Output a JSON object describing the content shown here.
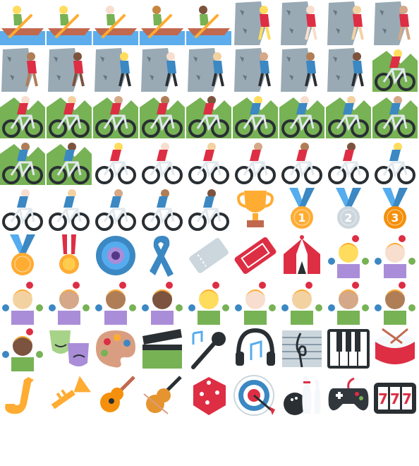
{
  "grid": {
    "columns": 9,
    "icons": [
      "rowing-boat-icon",
      "rowing-boat-icon",
      "rowing-boat-icon",
      "rowing-boat-icon",
      "rowing-boat-icon",
      "woman-climbing-icon",
      "woman-climbing-icon",
      "woman-climbing-icon",
      "woman-climbing-icon",
      "woman-climbing-icon",
      "woman-climbing-icon",
      "man-climbing-icon",
      "man-climbing-icon",
      "man-climbing-icon",
      "man-climbing-icon",
      "man-climbing-icon",
      "man-climbing-icon",
      "woman-mountain-biking-icon",
      "woman-mountain-biking-icon",
      "woman-mountain-biking-icon",
      "woman-mountain-biking-icon",
      "woman-mountain-biking-icon",
      "woman-mountain-biking-icon",
      "man-mountain-biking-icon",
      "man-mountain-biking-icon",
      "man-mountain-biking-icon",
      "man-mountain-biking-icon",
      "man-mountain-biking-icon",
      "man-mountain-biking-icon",
      "woman-biking-icon",
      "woman-biking-icon",
      "woman-biking-icon",
      "woman-biking-icon",
      "woman-biking-icon",
      "woman-biking-icon",
      "man-biking-icon",
      "man-biking-icon",
      "man-biking-icon",
      "man-biking-icon",
      "man-biking-icon",
      "man-biking-icon",
      "trophy-icon",
      "gold-medal-icon",
      "silver-medal-icon",
      "bronze-medal-icon",
      "sports-medal-icon",
      "military-medal-icon",
      "rosette-icon",
      "reminder-ribbon-icon",
      "ticket-icon",
      "admission-ticket-icon",
      "circus-tent-icon",
      "woman-juggling-icon",
      "woman-juggling-icon",
      "woman-juggling-icon",
      "woman-juggling-icon",
      "woman-juggling-icon",
      "woman-juggling-icon",
      "man-juggling-icon",
      "man-juggling-icon",
      "man-juggling-icon",
      "man-juggling-icon",
      "man-juggling-icon",
      "man-juggling-icon",
      "performing-arts-icon",
      "artist-palette-icon",
      "clapper-board-icon",
      "microphone-icon",
      "headphones-icon",
      "musical-score-icon",
      "musical-keyboard-icon",
      "drum-icon",
      "saxophone-icon",
      "trumpet-icon",
      "guitar-icon",
      "violin-icon",
      "game-die-icon",
      "direct-hit-icon",
      "bowling-icon",
      "video-game-icon",
      "slot-machine-icon"
    ],
    "skin_tones": [
      "#FFDC5D",
      "#FFDC5D",
      "#F7DECE",
      "#C68642",
      "#7C533E",
      "#FFDC5D",
      "#F7DECE",
      "#F3D2A2",
      "#D4A888",
      "#AF7E57",
      "#7C533E",
      "#FFDC5D",
      "#F7DECE",
      "#F3D2A2",
      "#D4A888",
      "#AF7E57",
      "#7C533E",
      "#FFDC5D",
      "#F7DECE",
      "#F3D2A2",
      "#D4A888",
      "#AF7E57",
      "#7C533E",
      "#FFDC5D",
      "#F7DECE",
      "#F3D2A2",
      "#D4A888",
      "#AF7E57",
      "#7C533E",
      "#FFDC5D",
      "#F7DECE",
      "#F3D2A2",
      "#D4A888",
      "#AF7E57",
      "#7C533E",
      "#FFDC5D",
      "#F7DECE",
      "#F3D2A2",
      "#D4A888",
      "#AF7E57",
      "#7C533E",
      "",
      "",
      "",
      "",
      "",
      "",
      "",
      "",
      "",
      "",
      "",
      "#FFDC5D",
      "#F7DECE",
      "#F3D2A2",
      "#D4A888",
      "#AF7E57",
      "#7C533E",
      "#FFDC5D",
      "#F7DECE",
      "#F3D2A2",
      "#D4A888",
      "#AF7E57",
      "#7C533E",
      "",
      "",
      "",
      "",
      "",
      "",
      "",
      "",
      "",
      "",
      "",
      "",
      "",
      "",
      "",
      "",
      "",
      ""
    ],
    "medal_numbers": [
      "1",
      "2",
      "3"
    ],
    "slot_machine_digits": "777"
  },
  "colors": {
    "water": "#5DADEC",
    "rock": "#99AAB5",
    "red": "#DD2E44",
    "blue": "#3B88C3",
    "green": "#77B255",
    "gold": "#FFAC33",
    "silver": "#CCD6DD",
    "bronze": "#F4900C",
    "dark": "#292F33",
    "purple": "#AA8DD8",
    "brown": "#C1694F"
  }
}
